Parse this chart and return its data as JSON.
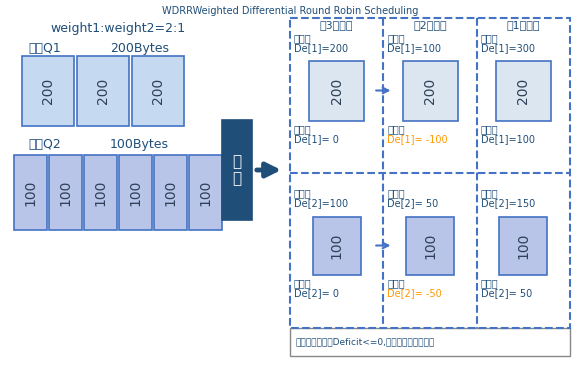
{
  "title": "WDRRWeighted Differential Round Robin Scheduling",
  "weight_label": "weight1:weight2=2:1",
  "q1_label": "队列Q1",
  "q1_bytes": "200Bytes",
  "q2_label": "队列Q2",
  "q2_bytes": "100Bytes",
  "q1_value": "200",
  "q2_value": "100",
  "q1_count": 3,
  "q2_count": 6,
  "round_labels": [
    "第3轮调度",
    "第2轮调度",
    "第1轮调度"
  ],
  "cell_data": [
    [
      0,
      0,
      "调度前",
      "De[1]=200",
      "调度后",
      "De[1]= 0",
      "200",
      false
    ],
    [
      1,
      0,
      "调度前",
      "De[1]=100",
      "调度后",
      "De[1]= -100",
      "200",
      true
    ],
    [
      2,
      0,
      "调度前",
      "De[1]=300",
      "调度后",
      "De[1]=100",
      "200",
      false
    ],
    [
      0,
      1,
      "调度前",
      "De[2]=100",
      "调度后",
      "De[2]= 0",
      "100",
      false
    ],
    [
      1,
      1,
      "调度前",
      "De[2]= 50",
      "调度后",
      "De[2]= -50",
      "100",
      true
    ],
    [
      2,
      1,
      "调度前",
      "De[2]=150",
      "调度后",
      "De[2]= 50",
      "100",
      false
    ]
  ],
  "bottom_note": "本轮调度，所有Deficit<=0,下一轮都加上初始值",
  "q1_box_color": "#c5d9f1",
  "q2_box_color": "#b8c4e8",
  "scheduler_color": "#1f4e79",
  "round_q1_box_color": "#dce6f1",
  "round_q2_box_color": "#b8c4e8",
  "text_blue": "#1f4e79",
  "text_dark": "#2e4057",
  "text_orange": "#ff9900",
  "dashed_color": "#4472c4",
  "bg_color": "#ffffff",
  "fig_w": 5.8,
  "fig_h": 3.83,
  "dpi": 100
}
